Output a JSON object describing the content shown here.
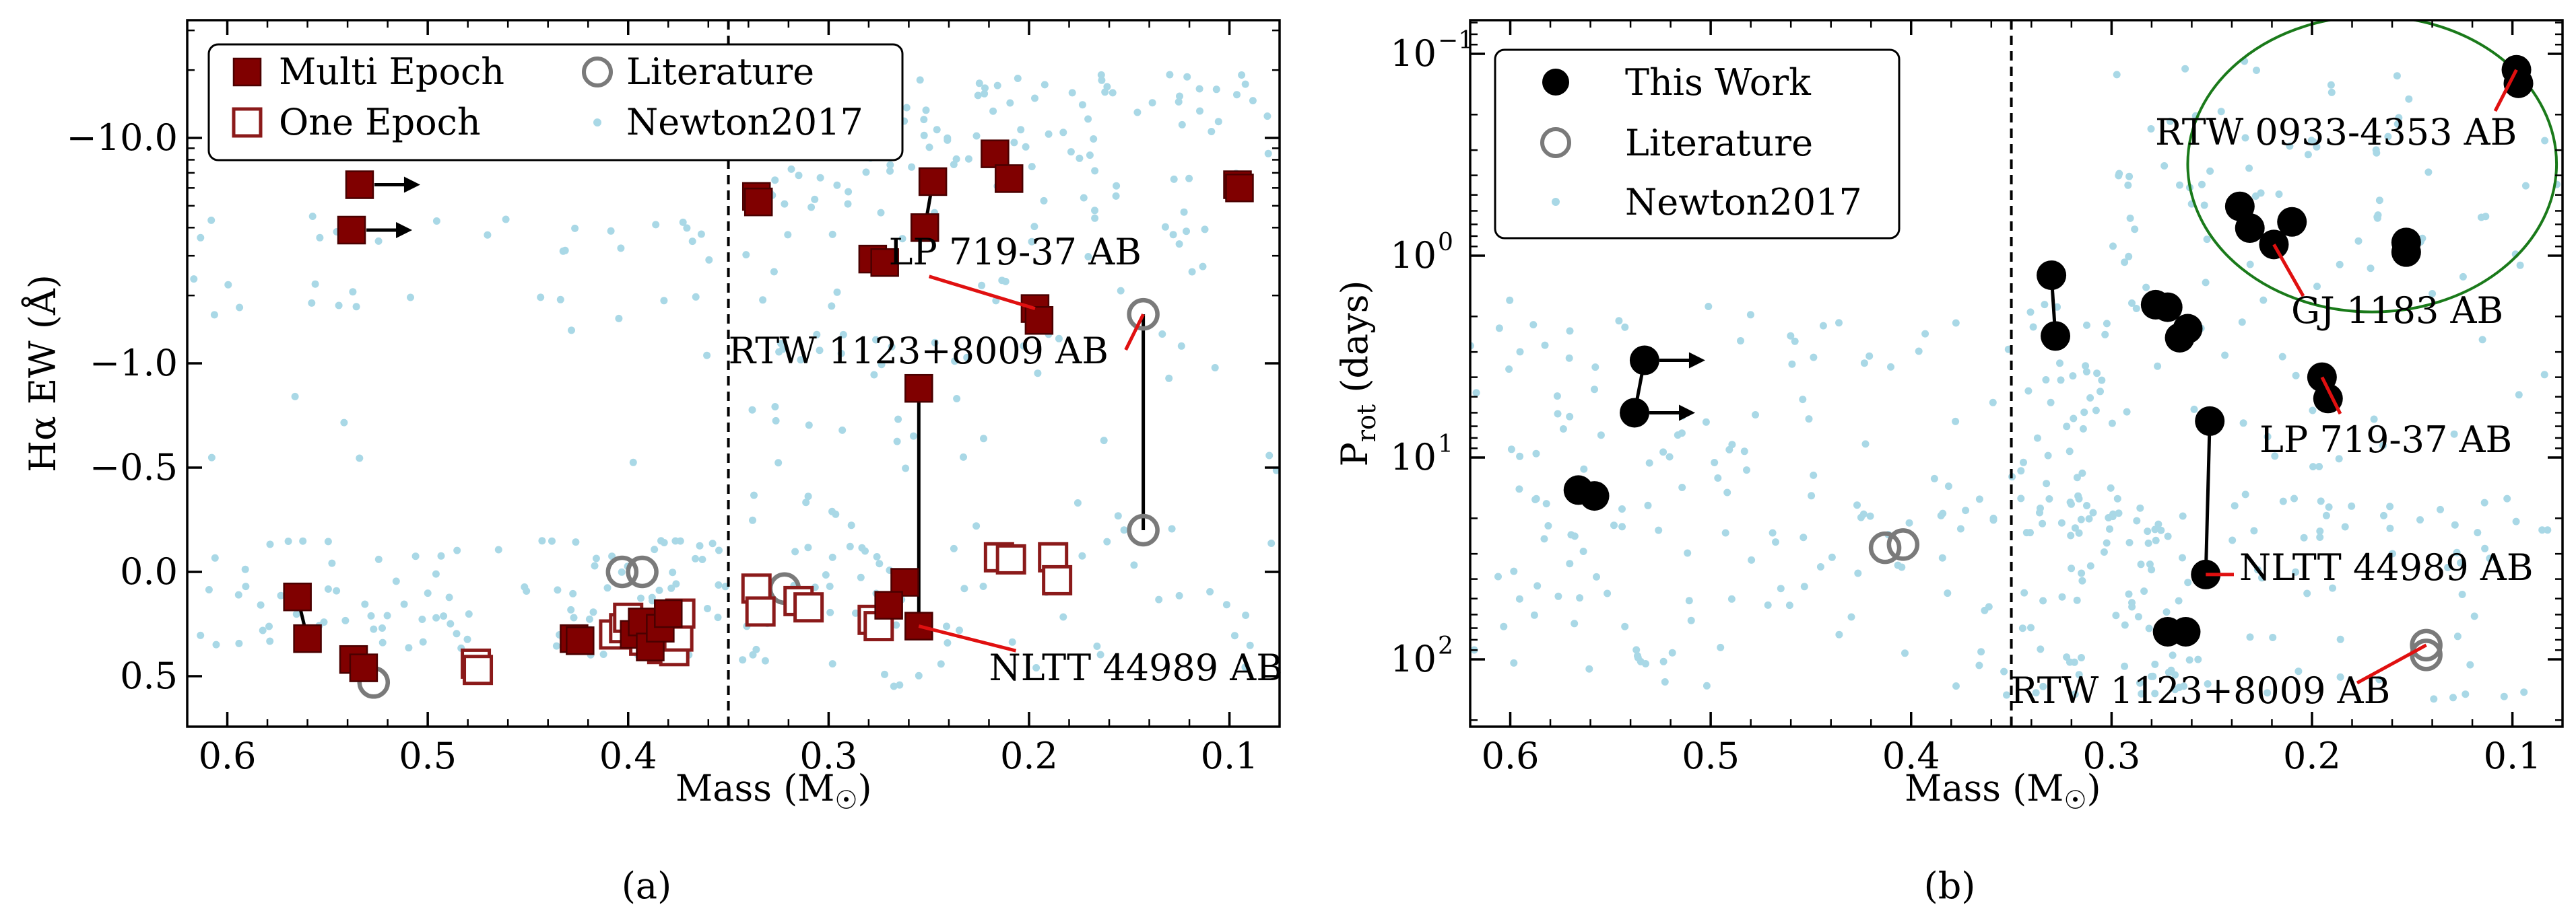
{
  "chart_data": [
    {
      "type": "scatter",
      "panel_label": "(a)",
      "xlabel": "Mass (M",
      "xlabel_sub": "☉",
      "xlabel_tail": ")",
      "ylabel": "Hα EW (Å)",
      "xlim": [
        0.62,
        0.075
      ],
      "y_scale": "symlog (linear |y|<1, log beyond)",
      "xticks": [
        "0.6",
        "0.5",
        "0.4",
        "0.3",
        "0.2",
        "0.1"
      ],
      "yticks": [
        "−10.0",
        "−1.0",
        "−0.5",
        "0.0",
        "0.5"
      ],
      "divider_x": 0.35,
      "legend": {
        "position": "top-left",
        "entries": [
          "Multi Epoch",
          "One Epoch",
          "Literature",
          "Newton2017"
        ]
      },
      "multi_epoch": [
        [
          0.534,
          -6.2
        ],
        [
          0.538,
          -3.9
        ],
        [
          0.565,
          0.12
        ],
        [
          0.56,
          0.32
        ],
        [
          0.537,
          0.42
        ],
        [
          0.532,
          0.46
        ],
        [
          0.427,
          0.32
        ],
        [
          0.424,
          0.33
        ],
        [
          0.397,
          0.3
        ],
        [
          0.393,
          0.24
        ],
        [
          0.389,
          0.36
        ],
        [
          0.384,
          0.27
        ],
        [
          0.38,
          0.2
        ],
        [
          0.336,
          -5.5
        ],
        [
          0.335,
          -5.2
        ],
        [
          0.278,
          -2.9
        ],
        [
          0.272,
          -2.8
        ],
        [
          0.248,
          -6.4
        ],
        [
          0.252,
          -4.0
        ],
        [
          0.217,
          -8.5
        ],
        [
          0.21,
          -6.6
        ],
        [
          0.197,
          -1.75
        ],
        [
          0.195,
          -1.55
        ],
        [
          0.096,
          -6.2
        ],
        [
          0.095,
          -6.0
        ],
        [
          0.262,
          0.05
        ],
        [
          0.27,
          0.16
        ],
        [
          0.255,
          -0.88
        ],
        [
          0.255,
          0.26
        ]
      ],
      "one_epoch": [
        [
          0.476,
          0.44
        ],
        [
          0.475,
          0.47
        ],
        [
          0.407,
          0.3
        ],
        [
          0.402,
          0.27
        ],
        [
          0.4,
          0.22
        ],
        [
          0.392,
          0.33
        ],
        [
          0.387,
          0.29
        ],
        [
          0.383,
          0.37
        ],
        [
          0.377,
          0.38
        ],
        [
          0.375,
          0.31
        ],
        [
          0.374,
          0.2
        ],
        [
          0.336,
          0.08
        ],
        [
          0.334,
          0.19
        ],
        [
          0.315,
          0.14
        ],
        [
          0.31,
          0.17
        ],
        [
          0.278,
          0.23
        ],
        [
          0.275,
          0.26
        ],
        [
          0.215,
          -0.07
        ],
        [
          0.209,
          -0.06
        ],
        [
          0.188,
          -0.07
        ],
        [
          0.186,
          0.04
        ]
      ],
      "literature": [
        [
          0.527,
          0.53
        ],
        [
          0.403,
          0.0
        ],
        [
          0.393,
          0.0
        ],
        [
          0.322,
          0.08
        ],
        [
          0.143,
          -1.65
        ],
        [
          0.143,
          -0.2
        ]
      ],
      "connectors": [
        [
          [
            0.565,
            0.12
          ],
          [
            0.56,
            0.32
          ]
        ],
        [
          [
            0.255,
            -0.88
          ],
          [
            0.255,
            0.26
          ]
        ],
        [
          [
            0.143,
            -1.65
          ],
          [
            0.143,
            -0.2
          ]
        ],
        [
          [
            0.248,
            -6.4
          ],
          [
            0.252,
            -4.0
          ]
        ]
      ],
      "limit_arrows": [
        [
          0.534,
          -6.2
        ],
        [
          0.538,
          -3.9
        ]
      ],
      "annotations": [
        {
          "text": "LP 719-37 AB",
          "target": [
            0.197,
            -1.75
          ],
          "label": [
            0.27,
            -2.75
          ]
        },
        {
          "text": "RTW 1123+8009 AB",
          "target": [
            0.143,
            -1.65
          ],
          "label": [
            0.35,
            -1.0
          ]
        },
        {
          "text": "NLTT 44989 AB",
          "target": [
            0.255,
            0.26
          ],
          "label": [
            0.22,
            0.52
          ]
        }
      ]
    },
    {
      "type": "scatter",
      "panel_label": "(b)",
      "xlabel": "Mass (M",
      "xlabel_sub": "☉",
      "xlabel_tail": ")",
      "ylabel": "P",
      "ylabel_sub": "rot",
      "ylabel_tail": " (days)",
      "xlim": [
        0.62,
        0.075
      ],
      "y_scale": "log, inverted",
      "ylim": [
        0.05,
        200
      ],
      "xticks": [
        "0.6",
        "0.5",
        "0.4",
        "0.3",
        "0.2",
        "0.1"
      ],
      "yticks": [
        "10",
        "10",
        "10",
        "10"
      ],
      "ytick_exponents": [
        "−1",
        "0",
        "1",
        "2"
      ],
      "divider_x": 0.35,
      "legend": {
        "position": "top-left",
        "entries": [
          "This Work",
          "Literature",
          "Newton2017"
        ]
      },
      "this_work": [
        [
          0.098,
          0.12
        ],
        [
          0.097,
          0.14
        ],
        [
          0.236,
          0.57
        ],
        [
          0.231,
          0.73
        ],
        [
          0.21,
          0.68
        ],
        [
          0.219,
          0.88
        ],
        [
          0.153,
          0.86
        ],
        [
          0.153,
          0.96
        ],
        [
          0.33,
          1.25
        ],
        [
          0.328,
          2.5
        ],
        [
          0.278,
          1.75
        ],
        [
          0.272,
          1.8
        ],
        [
          0.262,
          2.3
        ],
        [
          0.266,
          2.55
        ],
        [
          0.195,
          4.0
        ],
        [
          0.192,
          5.1
        ],
        [
          0.533,
          3.3
        ],
        [
          0.538,
          6.0
        ],
        [
          0.566,
          14.5
        ],
        [
          0.558,
          15.5
        ],
        [
          0.251,
          6.6
        ],
        [
          0.253,
          38.0
        ],
        [
          0.272,
          73.0
        ],
        [
          0.263,
          73.0
        ]
      ],
      "literature": [
        [
          0.413,
          28.0
        ],
        [
          0.404,
          27.0
        ],
        [
          0.143,
          85.0
        ],
        [
          0.143,
          95.0
        ]
      ],
      "connectors": [
        [
          [
            0.33,
            1.25
          ],
          [
            0.328,
            2.5
          ]
        ],
        [
          [
            0.251,
            6.6
          ],
          [
            0.253,
            38.0
          ]
        ],
        [
          [
            0.533,
            3.3
          ],
          [
            0.538,
            6.0
          ]
        ]
      ],
      "limit_arrows": [
        [
          0.533,
          3.3
        ],
        [
          0.538,
          6.0
        ]
      ],
      "ellipse": {
        "center": [
          0.17,
          0.33
        ],
        "x_halfwidth": 0.092,
        "y_range": [
          0.065,
          1.9
        ]
      },
      "annotations": [
        {
          "text": "RTW 0933-4353 AB",
          "target": [
            0.098,
            0.12
          ],
          "label": [
            0.18,
            0.39
          ]
        },
        {
          "text": "GJ 1183 AB",
          "target": [
            0.219,
            0.88
          ],
          "label": [
            0.15,
            2.85
          ]
        },
        {
          "text": "LP 719-37 AB",
          "target": [
            0.195,
            4.0
          ],
          "label": [
            0.15,
            8.3
          ]
        },
        {
          "text": "NLTT 44989 AB",
          "target": [
            0.253,
            38.0
          ],
          "label": [
            0.18,
            38.0
          ]
        },
        {
          "text": "RTW 1123+8009 AB",
          "target": [
            0.143,
            85.0
          ],
          "label": [
            0.24,
            180.0
          ]
        }
      ]
    }
  ]
}
